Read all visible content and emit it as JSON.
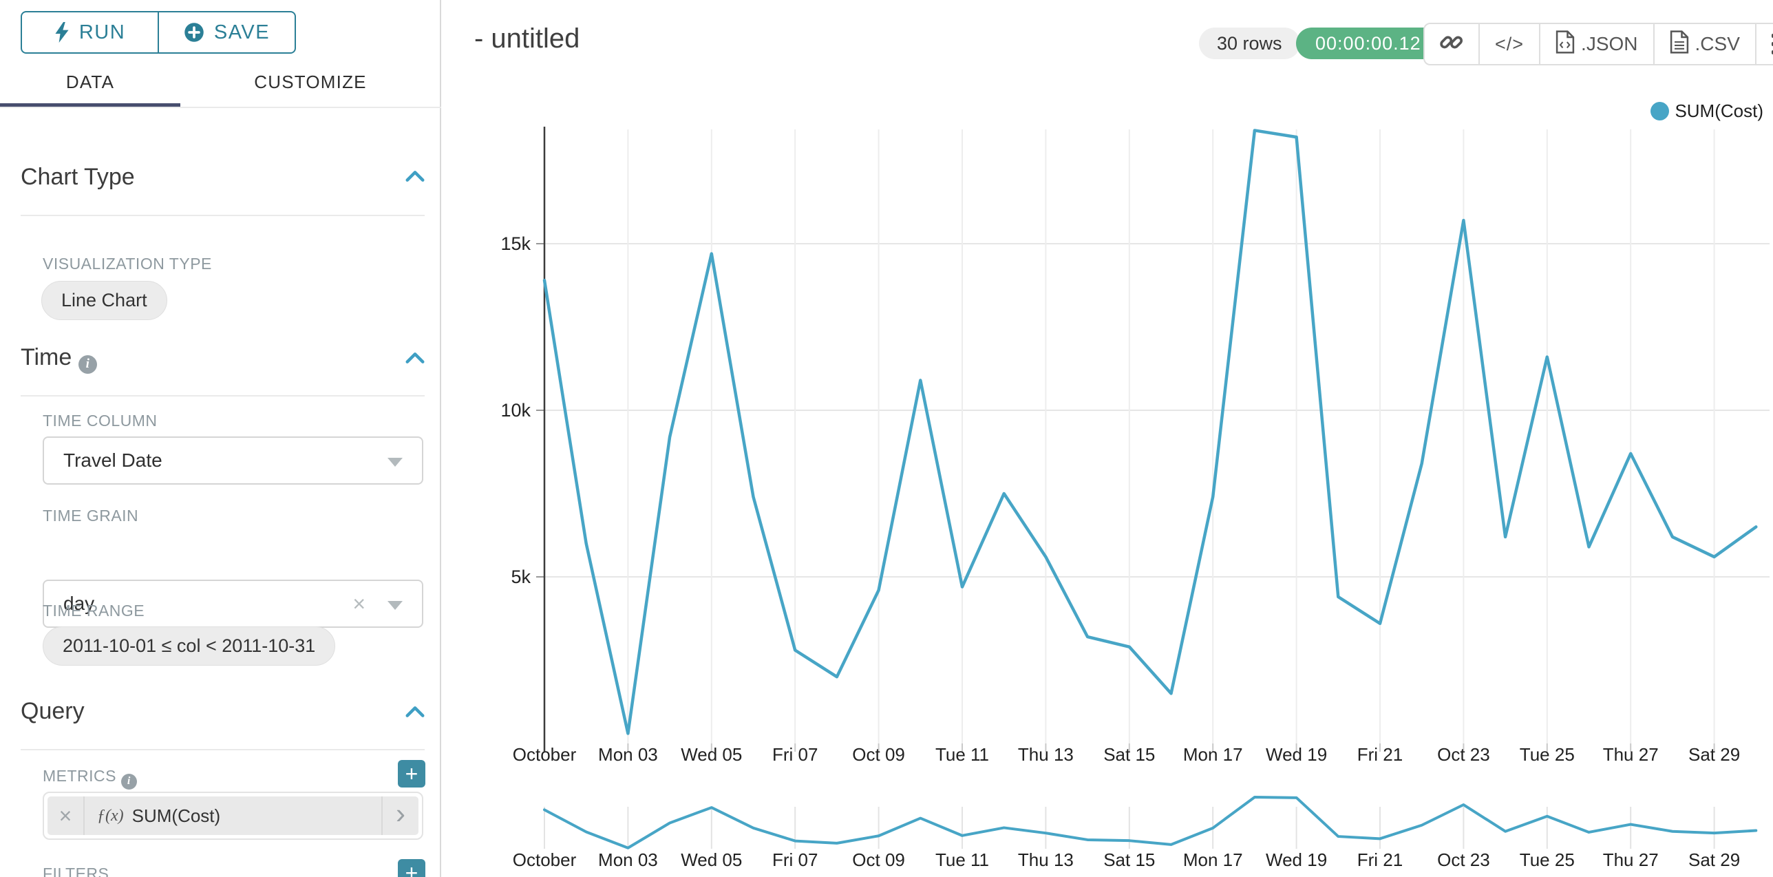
{
  "sidebar": {
    "run_button": {
      "label": "RUN"
    },
    "save_button": {
      "label": "SAVE"
    },
    "tabs": [
      {
        "label": "DATA",
        "active": true
      },
      {
        "label": "CUSTOMIZE",
        "active": false
      }
    ],
    "chart_type_section": {
      "title": "Chart Type",
      "visualization_type_label": "VISUALIZATION TYPE",
      "visualization_type": "Line Chart"
    },
    "time_section": {
      "title": "Time",
      "time_column_label": "TIME COLUMN",
      "time_column": "Travel Date",
      "time_grain_label": "TIME GRAIN",
      "time_grain": "day",
      "time_range_label": "TIME RANGE",
      "time_range": "2011-10-01 ≤ col < 2011-10-31"
    },
    "query_section": {
      "title": "Query",
      "metrics_label": "METRICS",
      "metric": {
        "fx": "ƒ(x)",
        "label": "SUM(Cost)"
      },
      "filters_label": "FILTERS"
    }
  },
  "header": {
    "title": "- untitled",
    "rows_badge": "30 rows",
    "timer_badge": "00:00:00.12",
    "export_json_label": ".JSON",
    "export_csv_label": ".CSV"
  },
  "glyphs": {
    "clear": "×",
    "plus": "+",
    "chevron_right": "›",
    "code": "</>",
    "info": "i"
  },
  "legend": {
    "label": "SUM(Cost)"
  },
  "colors": {
    "accent_teal": "#2b7f96",
    "line_blue": "#47a5c6",
    "timer_green": "#5cb384",
    "tab_underline": "#474e6e"
  },
  "chart_data": {
    "type": "line",
    "title": "",
    "legend": "SUM(Cost)",
    "legend_position": "top-right",
    "grid": true,
    "x_unit": "day of October 2011, Travel Date, grain = day",
    "x_days": [
      1,
      2,
      3,
      4,
      5,
      6,
      7,
      8,
      9,
      10,
      11,
      12,
      13,
      14,
      15,
      16,
      17,
      18,
      19,
      20,
      21,
      22,
      23,
      24,
      25,
      26,
      27,
      28,
      29,
      30
    ],
    "series": [
      {
        "name": "SUM(Cost)",
        "color": "#47a5c6",
        "values": [
          13900,
          6000,
          300,
          9200,
          14700,
          7400,
          2800,
          2000,
          4600,
          10900,
          4700,
          7500,
          5600,
          3200,
          2900,
          1500,
          7400,
          18400,
          18200,
          4400,
          3600,
          8400,
          15700,
          6200,
          11600,
          5900,
          8700,
          6200,
          5600,
          6500
        ]
      }
    ],
    "x_tick_days": [
      1,
      3,
      5,
      7,
      9,
      11,
      13,
      15,
      17,
      19,
      21,
      23,
      25,
      27,
      29
    ],
    "x_tick_labels": [
      "October",
      "Mon 03",
      "Wed 05",
      "Fri 07",
      "Oct 09",
      "Tue 11",
      "Thu 13",
      "Sat 15",
      "Mon 17",
      "Wed 19",
      "Fri 21",
      "Oct 23",
      "Tue 25",
      "Thu 27",
      "Sat 29"
    ],
    "y_tick_values": [
      5000,
      10000,
      15000
    ],
    "y_tick_labels": [
      "5k",
      "10k",
      "15k"
    ],
    "ylim": [
      0,
      18500
    ],
    "has_brush_minichart": true
  }
}
